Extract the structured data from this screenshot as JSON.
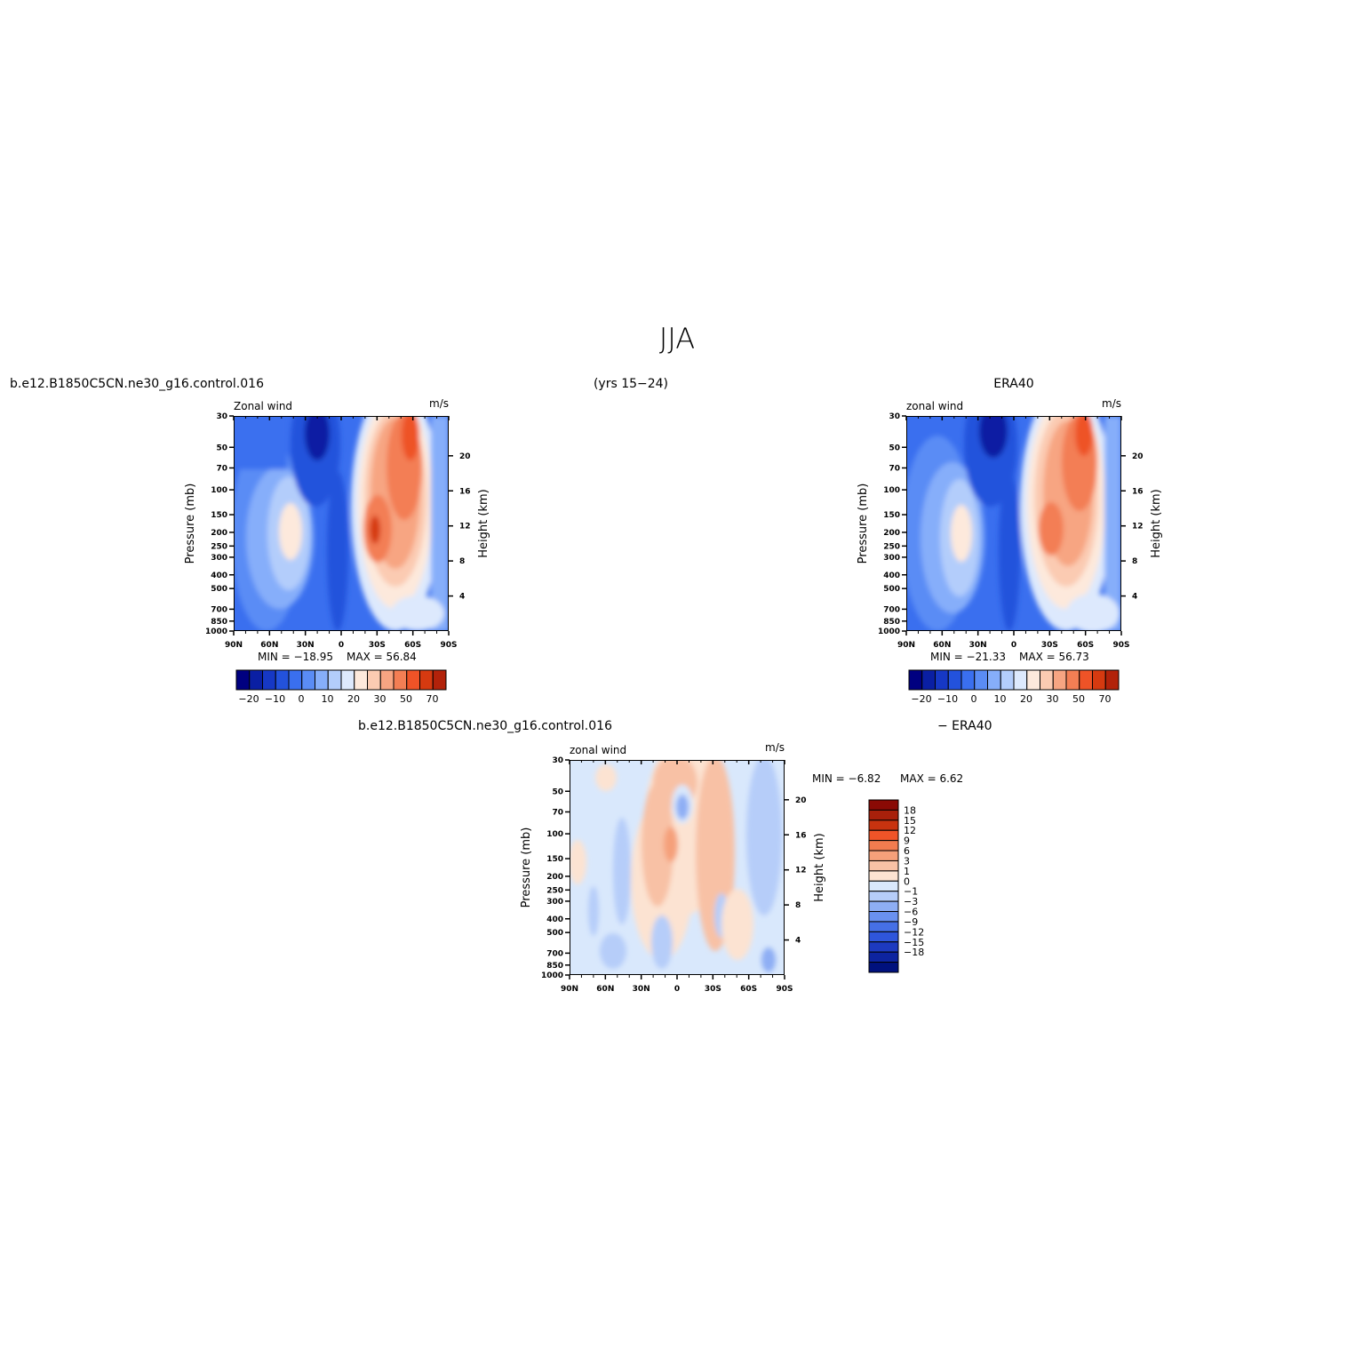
{
  "figure": {
    "title": "JJA",
    "period": "(yrs 15−24)",
    "case_name": "b.e12.B1850C5CN.ne30_g16.control.016",
    "obs_name": "ERA40",
    "diff_suffix": "− ERA40"
  },
  "colors": {
    "fill_scale_cool_to_warm": [
      "#000080",
      "#0a1fa3",
      "#1638c5",
      "#2352dc",
      "#3a6fef",
      "#5a8cf5",
      "#86aefa",
      "#b3cdfb",
      "#dde9fd",
      "#fde9dc",
      "#fbcbb2",
      "#f7a582",
      "#f37e54",
      "#ee5327",
      "#d63a10",
      "#b2220a",
      "#891204"
    ],
    "diff_colors": [
      "#8a0a05",
      "#a8200b",
      "#c8330f",
      "#ef5428",
      "#f27c4f",
      "#f5a07a",
      "#f8c1a5",
      "#fce3d2",
      "#d9e8fc",
      "#b6cdf9",
      "#8eaef4",
      "#6a91f0",
      "#4670e6",
      "#2f56db",
      "#1d3ac0",
      "#0d24a0",
      "#00117d"
    ]
  },
  "chart_data": [
    {
      "id": "model",
      "type": "heatmap",
      "panel_left": "b.e12.B1850C5CN.ne30_g16.control.016",
      "panel_right": "",
      "left_string": "Zonal wind",
      "right_string": "m/s",
      "ylabel": "Pressure (mb)",
      "ylabel_right": "Height (km)",
      "x_ticks": [
        "90N",
        "60N",
        "30N",
        "0",
        "30S",
        "60S",
        "90S"
      ],
      "y_ticks": [
        "30",
        "50",
        "70",
        "100",
        "150",
        "200",
        "250",
        "300",
        "400",
        "500",
        "700",
        "850",
        "1000"
      ],
      "y_right_ticks": [
        "20",
        "16",
        "12",
        "8",
        "4"
      ],
      "xlim": [
        90,
        -90
      ],
      "ylim": [
        1000,
        30
      ],
      "y_scale": "log",
      "min_label": "MIN = −18.95",
      "max_label": "MAX =   56.84",
      "min": -18.95,
      "max": 56.84,
      "colorbar_labels": [
        "−20",
        "−10",
        "0",
        "10",
        "20",
        "30",
        "50",
        "70"
      ],
      "features": [
        {
          "name": "southern polar night jet core",
          "lat": -55,
          "p": 30,
          "value": 56.84
        },
        {
          "name": "southern subtropical jet",
          "lat": -30,
          "p": 200,
          "value": 45
        },
        {
          "name": "tropical easterlies",
          "lat": 5,
          "p": 30,
          "value": -18.95
        },
        {
          "name": "northern westerly jet",
          "lat": 45,
          "p": 200,
          "value": 15
        }
      ]
    },
    {
      "id": "obs",
      "type": "heatmap",
      "panel_left": "",
      "panel_right": "ERA40",
      "left_string": "zonal wind",
      "right_string": "m/s",
      "ylabel": "Pressure (mb)",
      "ylabel_right": "Height (km)",
      "x_ticks": [
        "90N",
        "60N",
        "30N",
        "0",
        "30S",
        "60S",
        "90S"
      ],
      "y_ticks": [
        "30",
        "50",
        "70",
        "100",
        "150",
        "200",
        "250",
        "300",
        "400",
        "500",
        "700",
        "850",
        "1000"
      ],
      "y_right_ticks": [
        "20",
        "16",
        "12",
        "8",
        "4"
      ],
      "xlim": [
        90,
        -90
      ],
      "ylim": [
        1000,
        30
      ],
      "y_scale": "log",
      "min_label": "MIN = −21.33",
      "max_label": "MAX =   56.73",
      "min": -21.33,
      "max": 56.73,
      "colorbar_labels": [
        "−20",
        "−10",
        "0",
        "10",
        "20",
        "30",
        "50",
        "70"
      ],
      "features": [
        {
          "name": "southern polar night jet core",
          "lat": -55,
          "p": 30,
          "value": 56.73
        },
        {
          "name": "southern subtropical jet",
          "lat": -28,
          "p": 200,
          "value": 40
        },
        {
          "name": "tropical easterlies",
          "lat": 12,
          "p": 30,
          "value": -21.33
        },
        {
          "name": "northern westerly jet",
          "lat": 45,
          "p": 200,
          "value": 22
        }
      ]
    },
    {
      "id": "diff",
      "type": "heatmap",
      "panel_left": "b.e12.B1850C5CN.ne30_g16.control.016",
      "panel_right": "− ERA40",
      "left_string": "zonal wind",
      "right_string": "m/s",
      "ylabel": "Pressure (mb)",
      "ylabel_right": "Height (km)",
      "x_ticks": [
        "90N",
        "60N",
        "30N",
        "0",
        "30S",
        "60S",
        "90S"
      ],
      "y_ticks": [
        "30",
        "50",
        "70",
        "100",
        "150",
        "200",
        "250",
        "300",
        "400",
        "500",
        "700",
        "850",
        "1000"
      ],
      "y_right_ticks": [
        "20",
        "16",
        "12",
        "8",
        "4"
      ],
      "xlim": [
        90,
        -90
      ],
      "ylim": [
        1000,
        30
      ],
      "y_scale": "log",
      "min_label": "MIN =   −6.82",
      "max_label": "MAX =    6.62",
      "min": -6.82,
      "max": 6.62,
      "colorbar_labels": [
        "18",
        "15",
        "12",
        "9",
        "6",
        "3",
        "1",
        "0",
        "−1",
        "−3",
        "−6",
        "−9",
        "−12",
        "−15",
        "−18"
      ],
      "features": [
        {
          "name": "positive band",
          "lat": -20,
          "p": 100,
          "value": 6.62
        },
        {
          "name": "negative spot",
          "lat": 0,
          "p": 70,
          "value": -6.82
        }
      ]
    }
  ]
}
